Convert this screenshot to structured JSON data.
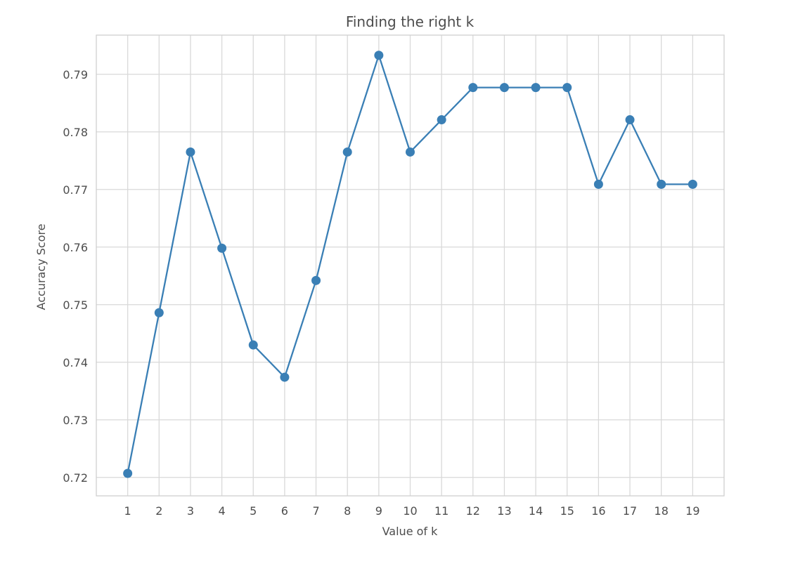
{
  "chart_data": {
    "type": "line",
    "title": "Finding the right k",
    "xlabel": "Value of k",
    "ylabel": "Accuracy Score",
    "x": [
      1,
      2,
      3,
      4,
      5,
      6,
      7,
      8,
      9,
      10,
      11,
      12,
      13,
      14,
      15,
      16,
      17,
      18,
      19
    ],
    "series": [
      {
        "values": [
          0.7207,
          0.7486,
          0.7765,
          0.7598,
          0.743,
          0.7374,
          0.7542,
          0.7765,
          0.7933,
          0.7765,
          0.7821,
          0.7877,
          0.7877,
          0.7877,
          0.7877,
          0.7709,
          0.7821,
          0.7709,
          0.7709
        ],
        "color": "#3a7fb5",
        "marker": "circle"
      }
    ],
    "xticks": [
      "1",
      "2",
      "3",
      "4",
      "5",
      "6",
      "7",
      "8",
      "9",
      "10",
      "11",
      "12",
      "13",
      "14",
      "15",
      "16",
      "17",
      "18",
      "19"
    ],
    "yticks": [
      0.72,
      0.73,
      0.74,
      0.75,
      0.76,
      0.77,
      0.78,
      0.79
    ],
    "ytick_labels": [
      "0.72",
      "0.73",
      "0.74",
      "0.75",
      "0.76",
      "0.77",
      "0.78",
      "0.79"
    ],
    "xlim": [
      0.0,
      20.0
    ],
    "ylim": [
      0.7168,
      0.7968
    ],
    "grid": true,
    "colors": {
      "line": "#3a7fb5",
      "grid": "#d9d9d9",
      "text": "#4d4d4d"
    }
  }
}
